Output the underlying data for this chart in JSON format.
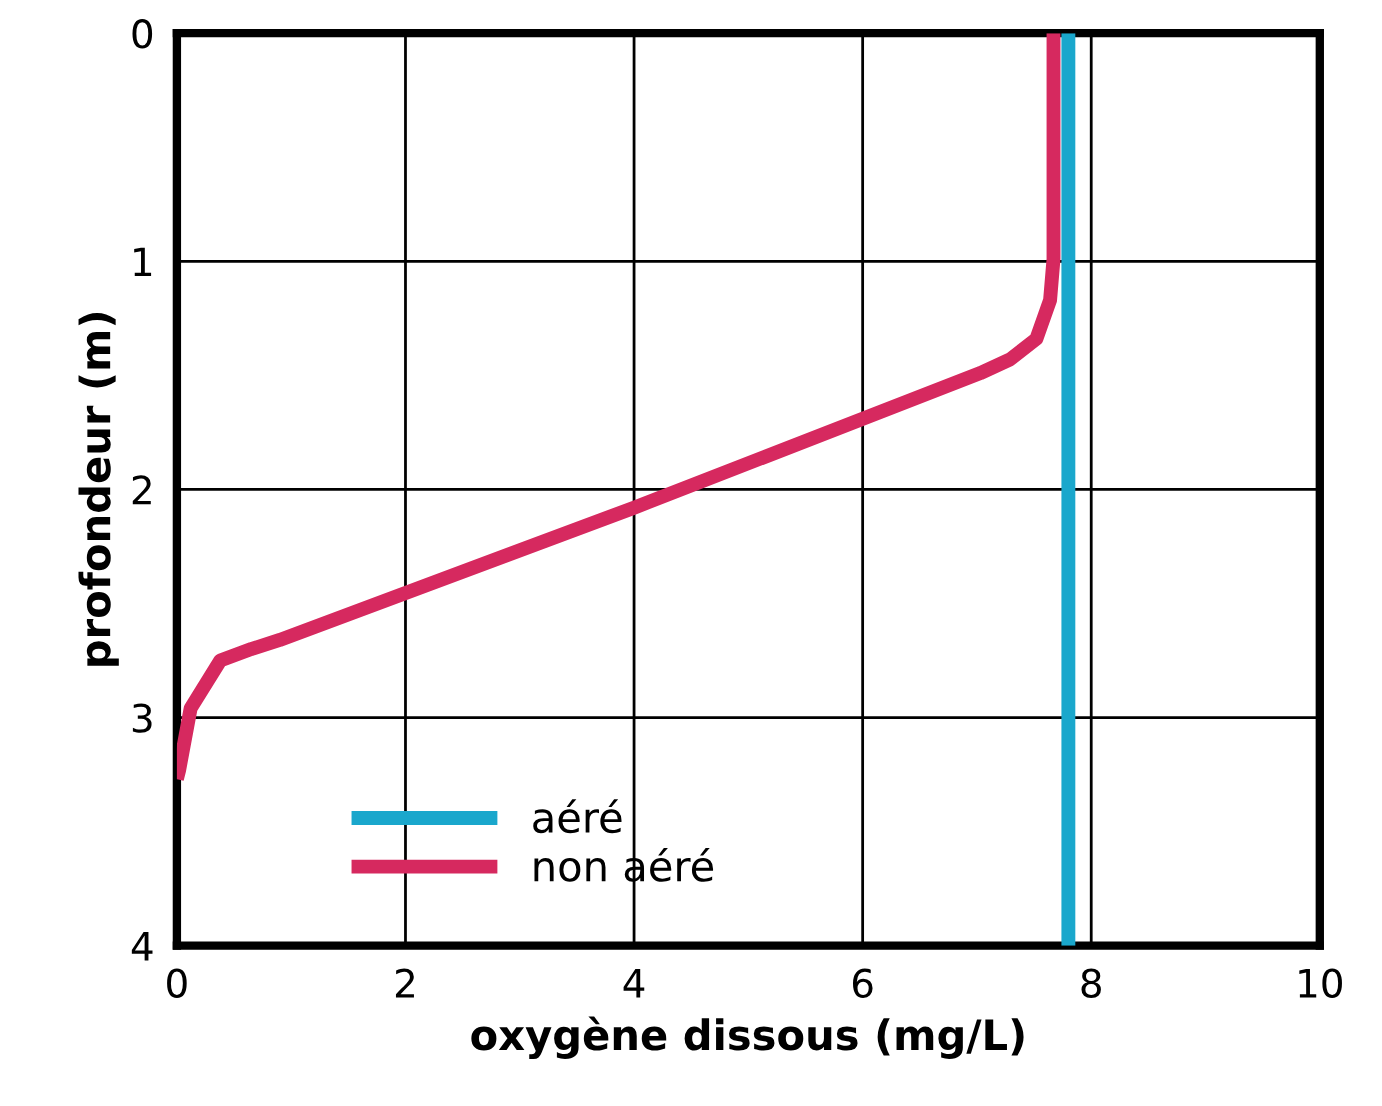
{
  "chart_data": {
    "type": "line",
    "xlabel": "oxygène dissous (mg/L)",
    "ylabel": "profondeur (m)",
    "xlim": [
      0,
      10
    ],
    "xticks": [
      0,
      2,
      4,
      6,
      8,
      10
    ],
    "ylim": [
      4,
      0
    ],
    "yticks": [
      0,
      1,
      2,
      3,
      4
    ],
    "grid": true,
    "legend": "bottom left",
    "marker": "none",
    "line_style": "solid",
    "series": [
      {
        "name": "aéré",
        "color": "#1aa7cc",
        "x": [
          7.8,
          7.8
        ],
        "values": [
          0,
          4
        ]
      },
      {
        "name": "non aéré",
        "color": "#d6295f",
        "x": [
          7.67,
          7.67,
          7.64,
          7.52,
          7.29,
          7.03,
          4.0,
          0.9,
          0.65,
          0.38,
          0.12,
          0.02,
          0.0
        ],
        "values": [
          0,
          0.99,
          1.17,
          1.34,
          1.43,
          1.49,
          2.08,
          2.66,
          2.7,
          2.75,
          2.96,
          3.23,
          3.27
        ]
      }
    ]
  }
}
